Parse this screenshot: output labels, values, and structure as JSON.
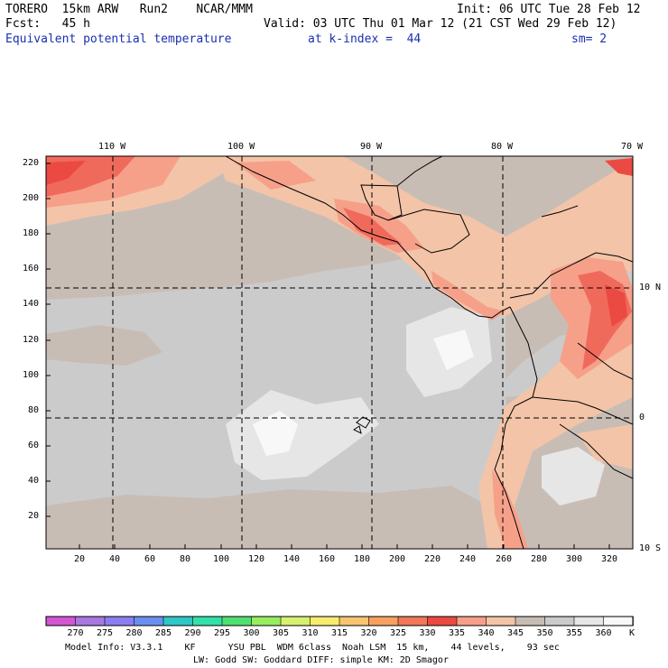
{
  "header": {
    "line1_left": "TORERO  15km ARW   Run2    NCAR/MMM",
    "line1_right": "Init: 06 UTC Tue 28 Feb 12",
    "line2_left": "Fcst:   45 h",
    "line2_right": "Valid: 03 UTC Thu 01 Mar 12 (21 CST Wed 29 Feb 12)",
    "line3_field": "Equivalent potential temperature",
    "line3_level": "at k-index =  44",
    "line3_smooth": "sm= 2"
  },
  "map": {
    "top_lon_labels": [
      "110 W",
      "100 W",
      "90 W",
      "80 W",
      "70 W"
    ],
    "right_lat_labels": [
      "10 N",
      "0",
      "10 S"
    ],
    "left_grid_labels": [
      "220",
      "200",
      "180",
      "160",
      "140",
      "120",
      "100",
      "80",
      "60",
      "40",
      "20"
    ],
    "bottom_grid_labels": [
      "20",
      "40",
      "60",
      "80",
      "100",
      "120",
      "140",
      "160",
      "180",
      "200",
      "220",
      "240",
      "260",
      "280",
      "300",
      "320"
    ],
    "colors": {
      "c345": "#c8bdb5",
      "c350": "#cbcbcb",
      "c355": "#e6e6e6",
      "c360": "#f8f8f8",
      "c340": "#f4c4a8",
      "c335": "#f6a08a",
      "c330": "#f06a5c",
      "c325": "#ea4a42"
    }
  },
  "colorbar": {
    "labels": [
      "270",
      "275",
      "280",
      "285",
      "290",
      "295",
      "300",
      "305",
      "310",
      "315",
      "320",
      "325",
      "330",
      "335",
      "340",
      "345",
      "350",
      "355",
      "360"
    ],
    "unit": "K",
    "colors": [
      "#d256d2",
      "#a779df",
      "#8a7ef0",
      "#6a8ff0",
      "#2fc6c6",
      "#32e0a8",
      "#50e070",
      "#98ec60",
      "#d8f070",
      "#f8ec70",
      "#f8c470",
      "#f8a060",
      "#f07858",
      "#ea4a42",
      "#f6a08a",
      "#f4c4a8",
      "#c8bdb5",
      "#cbcbcb",
      "#e6e6e6",
      "#f8f8f8"
    ]
  },
  "footer": {
    "line1": "Model Info: V3.3.1    KF      YSU PBL  WDM 6class  Noah LSM  15 km,    44 levels,    93 sec",
    "line2": "LW: Godd SW: Goddard DIFF: simple KM: 2D Smagor"
  }
}
